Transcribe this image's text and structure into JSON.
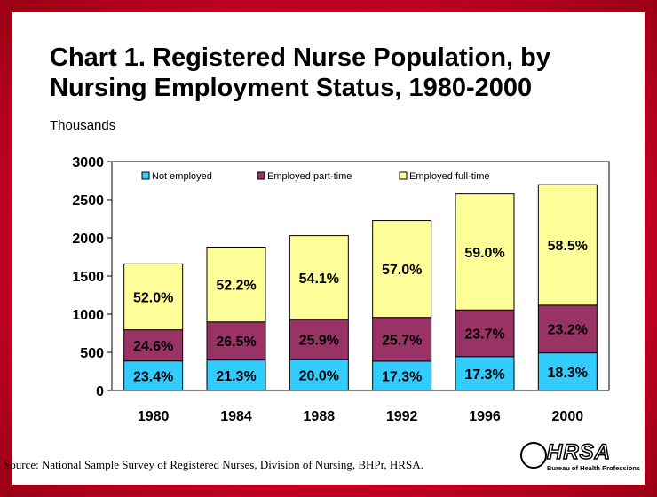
{
  "slide": {
    "title_line1": "Chart 1.  Registered Nurse Population, by",
    "title_line2": "Nursing Employment Status, 1980-2000",
    "source": "Source: National Sample Survey of Registered Nurses, Division of Nursing, BHPr, HRSA."
  },
  "logo": {
    "word": "HRSA",
    "tagline": "Bureau of Health Professions"
  },
  "chart_data": {
    "type": "bar",
    "stacked": true,
    "categories": [
      "1980",
      "1984",
      "1988",
      "1992",
      "1996",
      "2000"
    ],
    "ylabel": "Thousands",
    "ylim": [
      0,
      3000
    ],
    "yticks": [
      0,
      500,
      1000,
      1500,
      2000,
      2500,
      3000
    ],
    "legend_position": "top",
    "series": [
      {
        "name": "Not employed",
        "color": "#33ccff",
        "values": [
          388,
          400,
          405,
          385,
          445,
          493
        ],
        "labels": [
          "23.4%",
          "21.3%",
          "20.0%",
          "17.3%",
          "17.3%",
          "18.3%"
        ]
      },
      {
        "name": "Employed part-time",
        "color": "#993366",
        "values": [
          407,
          498,
          525,
          572,
          610,
          625
        ],
        "labels": [
          "24.6%",
          "26.5%",
          "25.9%",
          "25.7%",
          "23.7%",
          "23.2%"
        ]
      },
      {
        "name": "Employed full-time",
        "color": "#ffff99",
        "values": [
          864,
          980,
          1098,
          1269,
          1519,
          1578
        ],
        "labels": [
          "52.0%",
          "52.2%",
          "54.1%",
          "57.0%",
          "59.0%",
          "58.5%"
        ]
      }
    ]
  }
}
